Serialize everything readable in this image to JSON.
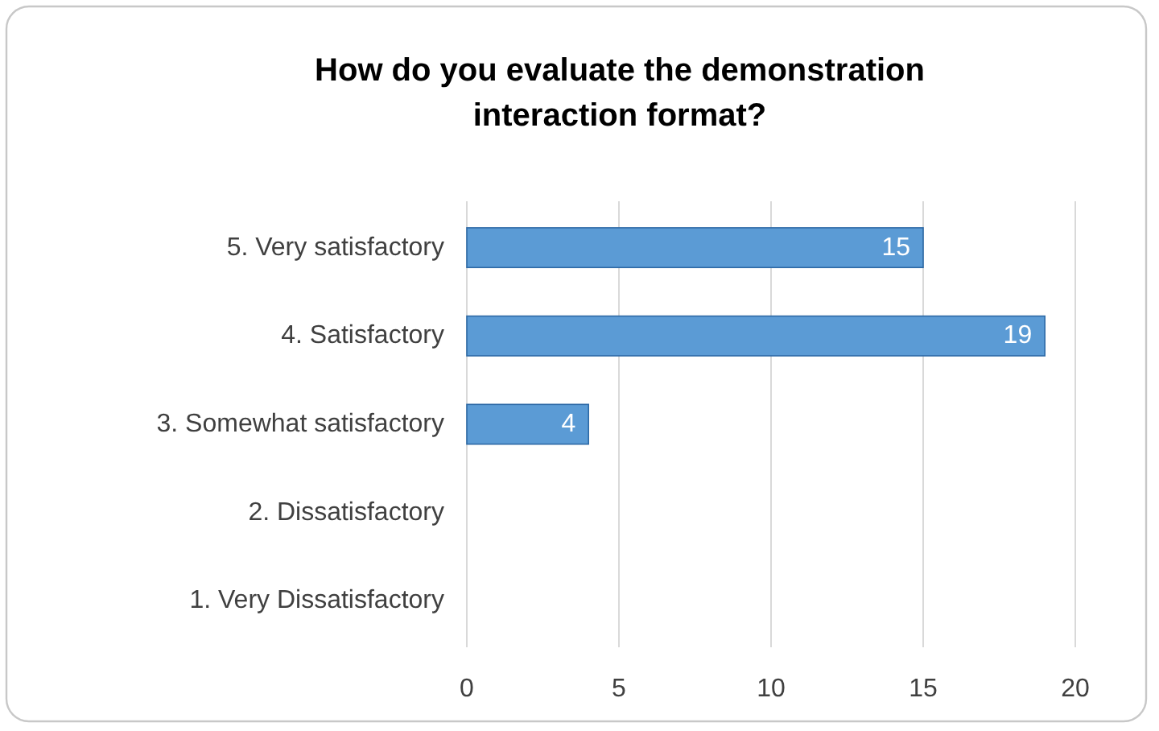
{
  "chart_data": {
    "type": "bar",
    "orientation": "horizontal",
    "title": "How do you evaluate the demonstration interaction format?",
    "categories": [
      "5. Very satisfactory",
      "4. Satisfactory",
      "3. Somewhat satisfactory",
      "2. Dissatisfactory",
      "1. Very Dissatisfactory"
    ],
    "values": [
      15,
      19,
      4,
      0,
      0
    ],
    "value_labels": [
      "15",
      "19",
      "4",
      null,
      null
    ],
    "color": "#5b9bd5",
    "xlim": [
      0,
      20
    ],
    "xticks": [
      0,
      5,
      10,
      15,
      20
    ],
    "grid": "x"
  }
}
